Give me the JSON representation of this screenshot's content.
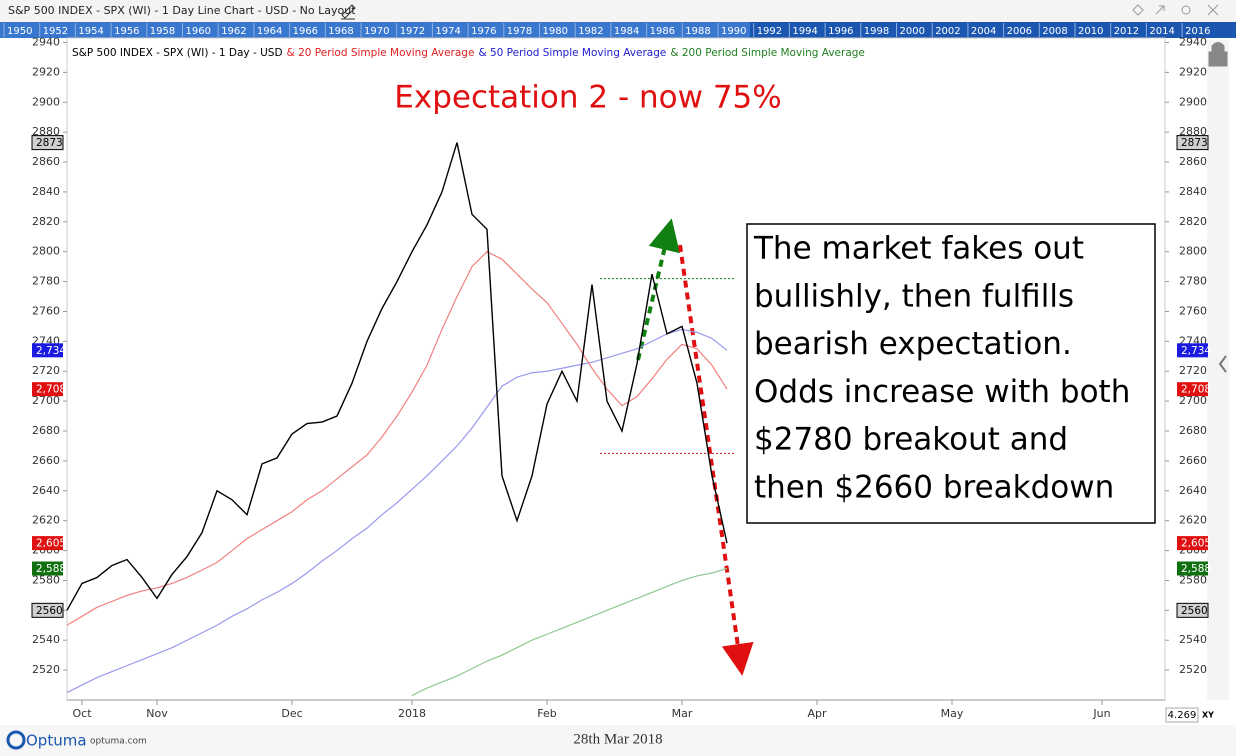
{
  "window_title": "S&P 500 INDEX - SPX (WI) - 1 Day Line Chart - USD - No Layout",
  "years": [
    "1950",
    "1952",
    "1954",
    "1956",
    "1958",
    "1960",
    "1962",
    "1964",
    "1966",
    "1968",
    "1970",
    "1972",
    "1974",
    "1976",
    "1978",
    "1980",
    "1982",
    "1984",
    "1986",
    "1988",
    "1990",
    "1992",
    "1994",
    "1996",
    "1998",
    "2000",
    "2002",
    "2004",
    "2006",
    "2008",
    "2010",
    "2012",
    "2014",
    "2016"
  ],
  "chart_data": {
    "type": "line",
    "title": "Expectation 2 - now 75%",
    "categories": [
      null,
      "Oct",
      null,
      null,
      null,
      null,
      "Nov",
      null,
      null,
      null,
      null,
      null,
      null,
      null,
      null,
      "Dec",
      null,
      null,
      null,
      null,
      null,
      null,
      null,
      "2018",
      null,
      null,
      null,
      null,
      null,
      null,
      null,
      null,
      "Feb",
      null,
      null,
      null,
      null,
      null,
      null,
      null,
      null,
      "Mar",
      null,
      null,
      null,
      null,
      null,
      null,
      null,
      null,
      "Apr",
      null,
      null,
      null,
      null,
      null,
      null,
      null,
      null,
      "May",
      null,
      null,
      null,
      null,
      null,
      null,
      null,
      null,
      null,
      "Jun",
      null,
      null,
      null,
      null
    ],
    "series": [
      {
        "name": "S&P 500 INDEX - SPX (WI) - 1 Day - USD",
        "color": "#000000",
        "width": 1.4,
        "values": [
          2560,
          2578,
          2582,
          2590,
          2594,
          2582,
          2568,
          2584,
          2596,
          2612,
          2640,
          2634,
          2624,
          2658,
          2662,
          2678,
          2685,
          2686,
          2690,
          2712,
          2740,
          2762,
          2780,
          2800,
          2818,
          2840,
          2873,
          2825,
          2815,
          2650,
          2620,
          2650,
          2698,
          2720,
          2700,
          2778,
          2700,
          2680,
          2725,
          2785,
          2745,
          2750,
          2712,
          2650,
          2605,
          null,
          null,
          null,
          null,
          null,
          null,
          null,
          null,
          null,
          null,
          null,
          null,
          null,
          null,
          null,
          null,
          null,
          null,
          null,
          null,
          null,
          null,
          null,
          null,
          null,
          null,
          null,
          null,
          null
        ]
      },
      {
        "name": "& 20 Period Simple Moving Average",
        "color": "#f08080",
        "width": 1.2,
        "values": [
          2550,
          2556,
          2562,
          2566,
          2570,
          2573,
          2575,
          2578,
          2582,
          2587,
          2592,
          2600,
          2608,
          2614,
          2620,
          2626,
          2634,
          2640,
          2648,
          2656,
          2664,
          2676,
          2690,
          2706,
          2724,
          2748,
          2770,
          2790,
          2800,
          2795,
          2785,
          2775,
          2766,
          2752,
          2738,
          2722,
          2708,
          2697,
          2703,
          2715,
          2728,
          2738,
          2735,
          2724,
          2708,
          null,
          null,
          null,
          null,
          null,
          null,
          null,
          null,
          null,
          null,
          null,
          null,
          null,
          null,
          null,
          null,
          null,
          null,
          null,
          null,
          null,
          null,
          null,
          null,
          null,
          null,
          null,
          null,
          null
        ]
      },
      {
        "name": "& 50 Period Simple Moving Average",
        "color": "#9999ee",
        "width": 1.2,
        "values": [
          2505,
          2510,
          2515,
          2519,
          2523,
          2527,
          2531,
          2535,
          2540,
          2545,
          2550,
          2556,
          2561,
          2567,
          2572,
          2578,
          2585,
          2593,
          2600,
          2608,
          2615,
          2624,
          2632,
          2641,
          2650,
          2660,
          2670,
          2682,
          2696,
          2710,
          2716,
          2719,
          2720,
          2722,
          2724,
          2726,
          2729,
          2732,
          2735,
          2740,
          2745,
          2748,
          2746,
          2742,
          2734,
          null,
          null,
          null,
          null,
          null,
          null,
          null,
          null,
          null,
          null,
          null,
          null,
          null,
          null,
          null,
          null,
          null,
          null,
          null,
          null,
          null,
          null,
          null,
          null,
          null,
          null,
          null,
          null,
          null
        ]
      },
      {
        "name": "& 200 Period Simple Moving Average",
        "color": "#90c890",
        "width": 1.2,
        "values": [
          null,
          null,
          null,
          null,
          null,
          null,
          null,
          null,
          null,
          null,
          null,
          null,
          null,
          null,
          null,
          null,
          null,
          null,
          null,
          null,
          null,
          null,
          null,
          2503,
          2508,
          2512,
          2516,
          2521,
          2526,
          2530,
          2535,
          2540,
          2544,
          2548,
          2552,
          2556,
          2560,
          2564,
          2568,
          2572,
          2576,
          2580,
          2583,
          2585,
          2588,
          null,
          null,
          null,
          null,
          null,
          null,
          null,
          null,
          null,
          null,
          null,
          null,
          null,
          null,
          null,
          null,
          null,
          null,
          null,
          null,
          null,
          null,
          null,
          null,
          null,
          null,
          null,
          null,
          null
        ]
      }
    ],
    "legend_colors": [
      "#000000",
      "#e02020",
      "#2020d0",
      "#208020"
    ],
    "ylim": [
      2500,
      2943
    ],
    "yticks": [
      2520,
      2540,
      2560,
      2580,
      2600,
      2620,
      2640,
      2660,
      2680,
      2700,
      2720,
      2740,
      2760,
      2780,
      2800,
      2820,
      2840,
      2860,
      2880,
      2900,
      2920,
      2940
    ],
    "markers": [
      {
        "value": 2873,
        "color": "#d0d0d0",
        "text_color": "#000000"
      },
      {
        "value": 2734,
        "label": "2,734",
        "color": "#1a1ae0",
        "text_color": "#ffffff"
      },
      {
        "value": 2708,
        "label": "2,708",
        "color": "#e01010",
        "text_color": "#ffffff"
      },
      {
        "value": 2605,
        "label": "2,605",
        "color": "#e01010",
        "text_color": "#ffffff"
      },
      {
        "value": 2588,
        "label": "2,588",
        "color": "#107010",
        "text_color": "#ffffff"
      },
      {
        "value": 2560,
        "color": "#d0d0d0",
        "text_color": "#000000"
      }
    ],
    "levels": [
      {
        "value": 2782,
        "color": "#108010",
        "from": 35,
        "to": 44
      },
      {
        "value": 2665,
        "color": "#e01010",
        "from": 35,
        "to": 44
      }
    ],
    "annotation": [
      "The market fakes out",
      "bullishly, then fulfills",
      "bearish expectation.",
      "Odds increase with both",
      "$2780 breakout and",
      "then $2660 breakdown"
    ]
  },
  "footer": {
    "brand": "Optuma",
    "site": "optuma.com",
    "date": "28th Mar 2018",
    "scale": "4.269",
    "mode": "XY"
  }
}
